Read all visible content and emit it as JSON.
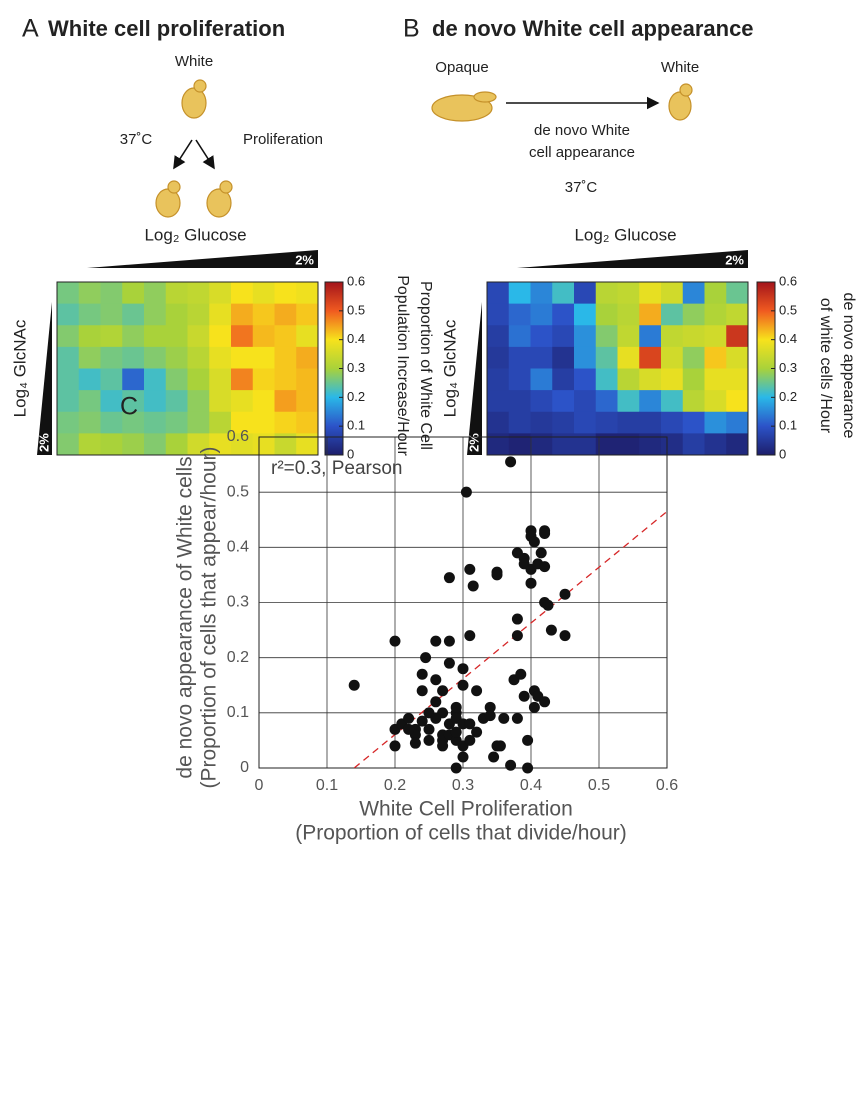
{
  "diagram_a": {
    "cell_label": "White",
    "temperature": "37˚C",
    "process": "Proliferation"
  },
  "diagram_b": {
    "source": "Opaque",
    "target": "White",
    "process_lines": [
      "de novo White",
      "cell appearance"
    ],
    "temperature": "37˚C"
  },
  "chart_data": [
    {
      "type": "heatmap",
      "panel_label": "A",
      "title": "White cell proliferation",
      "x_label": "Log₂ Glucose",
      "y_label": "Log₄ GlcNAc",
      "x_corner_label": "2%",
      "y_corner_label": "2%",
      "colorbar_label": [
        "Proportion of White Cell",
        "Population Increase/Hour"
      ],
      "clim": [
        0,
        0.6
      ],
      "cticks": [
        0,
        0.1,
        0.2,
        0.3,
        0.4,
        0.5,
        0.6
      ],
      "colormap": [
        "#1d1e6b",
        "#2c53c8",
        "#2ab8e8",
        "#a9d23a",
        "#f7e21c",
        "#f05a20",
        "#a3141b"
      ],
      "values": [
        [
          0.26,
          0.28,
          0.27,
          0.3,
          0.28,
          0.32,
          0.33,
          0.36,
          0.4,
          0.38,
          0.4,
          0.39
        ],
        [
          0.24,
          0.26,
          0.27,
          0.25,
          0.28,
          0.3,
          0.32,
          0.38,
          0.44,
          0.42,
          0.44,
          0.42
        ],
        [
          0.27,
          0.3,
          0.31,
          0.28,
          0.3,
          0.3,
          0.34,
          0.4,
          0.48,
          0.43,
          0.42,
          0.38
        ],
        [
          0.24,
          0.28,
          0.26,
          0.25,
          0.27,
          0.29,
          0.32,
          0.38,
          0.4,
          0.4,
          0.42,
          0.44
        ],
        [
          0.24,
          0.22,
          0.24,
          0.12,
          0.22,
          0.27,
          0.3,
          0.36,
          0.47,
          0.41,
          0.42,
          0.43
        ],
        [
          0.24,
          0.26,
          0.22,
          0.24,
          0.22,
          0.24,
          0.28,
          0.36,
          0.38,
          0.4,
          0.45,
          0.43
        ],
        [
          0.26,
          0.27,
          0.25,
          0.26,
          0.25,
          0.26,
          0.28,
          0.32,
          0.4,
          0.4,
          0.41,
          0.42
        ],
        [
          0.27,
          0.31,
          0.3,
          0.29,
          0.27,
          0.3,
          0.35,
          0.38,
          0.37,
          0.38,
          0.34,
          0.38
        ]
      ]
    },
    {
      "type": "heatmap",
      "panel_label": "B",
      "title": "de novo White cell appearance",
      "x_label": "Log₂ Glucose",
      "y_label": "Log₄ GlcNAc",
      "x_corner_label": "2%",
      "y_corner_label": "2%",
      "colorbar_label": [
        "de novo appearance",
        "of white cells /Hour"
      ],
      "clim": [
        0,
        0.6
      ],
      "cticks": [
        0,
        0.1,
        0.2,
        0.3,
        0.4,
        0.5,
        0.6
      ],
      "colormap": [
        "#1d1e6b",
        "#2c53c8",
        "#2ab8e8",
        "#a9d23a",
        "#f7e21c",
        "#f05a20",
        "#a3141b"
      ],
      "values": [
        [
          0.08,
          0.2,
          0.15,
          0.22,
          0.08,
          0.32,
          0.33,
          0.38,
          0.35,
          0.15,
          0.3,
          0.25
        ],
        [
          0.08,
          0.12,
          0.14,
          0.1,
          0.2,
          0.3,
          0.32,
          0.44,
          0.24,
          0.28,
          0.31,
          0.33
        ],
        [
          0.06,
          0.13,
          0.1,
          0.08,
          0.16,
          0.27,
          0.33,
          0.14,
          0.33,
          0.34,
          0.35,
          0.55
        ],
        [
          0.05,
          0.08,
          0.08,
          0.04,
          0.16,
          0.24,
          0.38,
          0.53,
          0.35,
          0.28,
          0.42,
          0.36
        ],
        [
          0.06,
          0.08,
          0.14,
          0.06,
          0.1,
          0.22,
          0.32,
          0.36,
          0.38,
          0.3,
          0.38,
          0.38
        ],
        [
          0.06,
          0.06,
          0.08,
          0.1,
          0.08,
          0.12,
          0.22,
          0.15,
          0.22,
          0.32,
          0.36,
          0.4
        ],
        [
          0.04,
          0.06,
          0.05,
          0.06,
          0.08,
          0.07,
          0.06,
          0.06,
          0.08,
          0.1,
          0.16,
          0.14
        ],
        [
          0.02,
          0.01,
          0.02,
          0.04,
          0.04,
          0.01,
          0.01,
          0.02,
          0.03,
          0.06,
          0.04,
          0.02
        ]
      ]
    },
    {
      "type": "scatter",
      "panel_label": "C",
      "annotation": "r²=0.3, Pearson",
      "x_label": [
        "White Cell Proliferation",
        "(Proportion of cells that divide/hour)"
      ],
      "y_label": [
        "de novo appearance  of White cells",
        "(Proportion of cells that appear/hour)"
      ],
      "xlim": [
        0,
        0.6
      ],
      "ylim": [
        0,
        0.6
      ],
      "xticks": [
        0,
        0.1,
        0.2,
        0.3,
        0.4,
        0.5,
        0.6
      ],
      "yticks": [
        0,
        0.1,
        0.2,
        0.3,
        0.4,
        0.5,
        0.6
      ],
      "grid": true,
      "color": "#111111",
      "fit_color": "#d62728",
      "fit_line": {
        "x": [
          0.14,
          0.6
        ],
        "y": [
          0,
          0.465
        ]
      },
      "x": [
        0.14,
        0.2,
        0.2,
        0.2,
        0.21,
        0.22,
        0.23,
        0.23,
        0.23,
        0.24,
        0.24,
        0.245,
        0.25,
        0.25,
        0.26,
        0.26,
        0.26,
        0.27,
        0.27,
        0.27,
        0.27,
        0.28,
        0.28,
        0.28,
        0.28,
        0.28,
        0.29,
        0.29,
        0.29,
        0.29,
        0.29,
        0.3,
        0.3,
        0.3,
        0.3,
        0.3,
        0.305,
        0.31,
        0.31,
        0.31,
        0.315,
        0.32,
        0.32,
        0.33,
        0.34,
        0.345,
        0.35,
        0.35,
        0.35,
        0.36,
        0.37,
        0.37,
        0.375,
        0.38,
        0.38,
        0.38,
        0.385,
        0.39,
        0.39,
        0.39,
        0.395,
        0.395,
        0.4,
        0.4,
        0.4,
        0.4,
        0.405,
        0.405,
        0.405,
        0.41,
        0.41,
        0.415,
        0.42,
        0.42,
        0.42,
        0.42,
        0.42,
        0.425,
        0.43,
        0.45,
        0.45,
        0.27,
        0.25,
        0.26,
        0.24,
        0.22,
        0.29,
        0.31,
        0.34,
        0.355,
        0.38
      ],
      "y": [
        0.15,
        0.23,
        0.07,
        0.04,
        0.08,
        0.09,
        0.07,
        0.06,
        0.045,
        0.14,
        0.17,
        0.2,
        0.1,
        0.07,
        0.23,
        0.12,
        0.16,
        0.14,
        0.06,
        0.05,
        0.04,
        0.23,
        0.19,
        0.08,
        0.06,
        0.345,
        0.1,
        0.11,
        0.09,
        0.05,
        0,
        0.18,
        0.15,
        0.08,
        0.04,
        0.02,
        0.5,
        0.36,
        0.05,
        0.24,
        0.33,
        0.14,
        0.065,
        0.09,
        0.11,
        0.02,
        0.355,
        0.35,
        0.04,
        0.09,
        0.555,
        0.005,
        0.16,
        0.27,
        0.24,
        0.39,
        0.17,
        0.38,
        0.37,
        0.13,
        0.05,
        0,
        0.43,
        0.42,
        0.36,
        0.335,
        0.41,
        0.11,
        0.14,
        0.37,
        0.13,
        0.39,
        0.43,
        0.425,
        0.365,
        0.3,
        0.12,
        0.295,
        0.25,
        0.315,
        0.24,
        0.1,
        0.05,
        0.09,
        0.085,
        0.07,
        0.065,
        0.08,
        0.095,
        0.04,
        0.09
      ]
    }
  ]
}
